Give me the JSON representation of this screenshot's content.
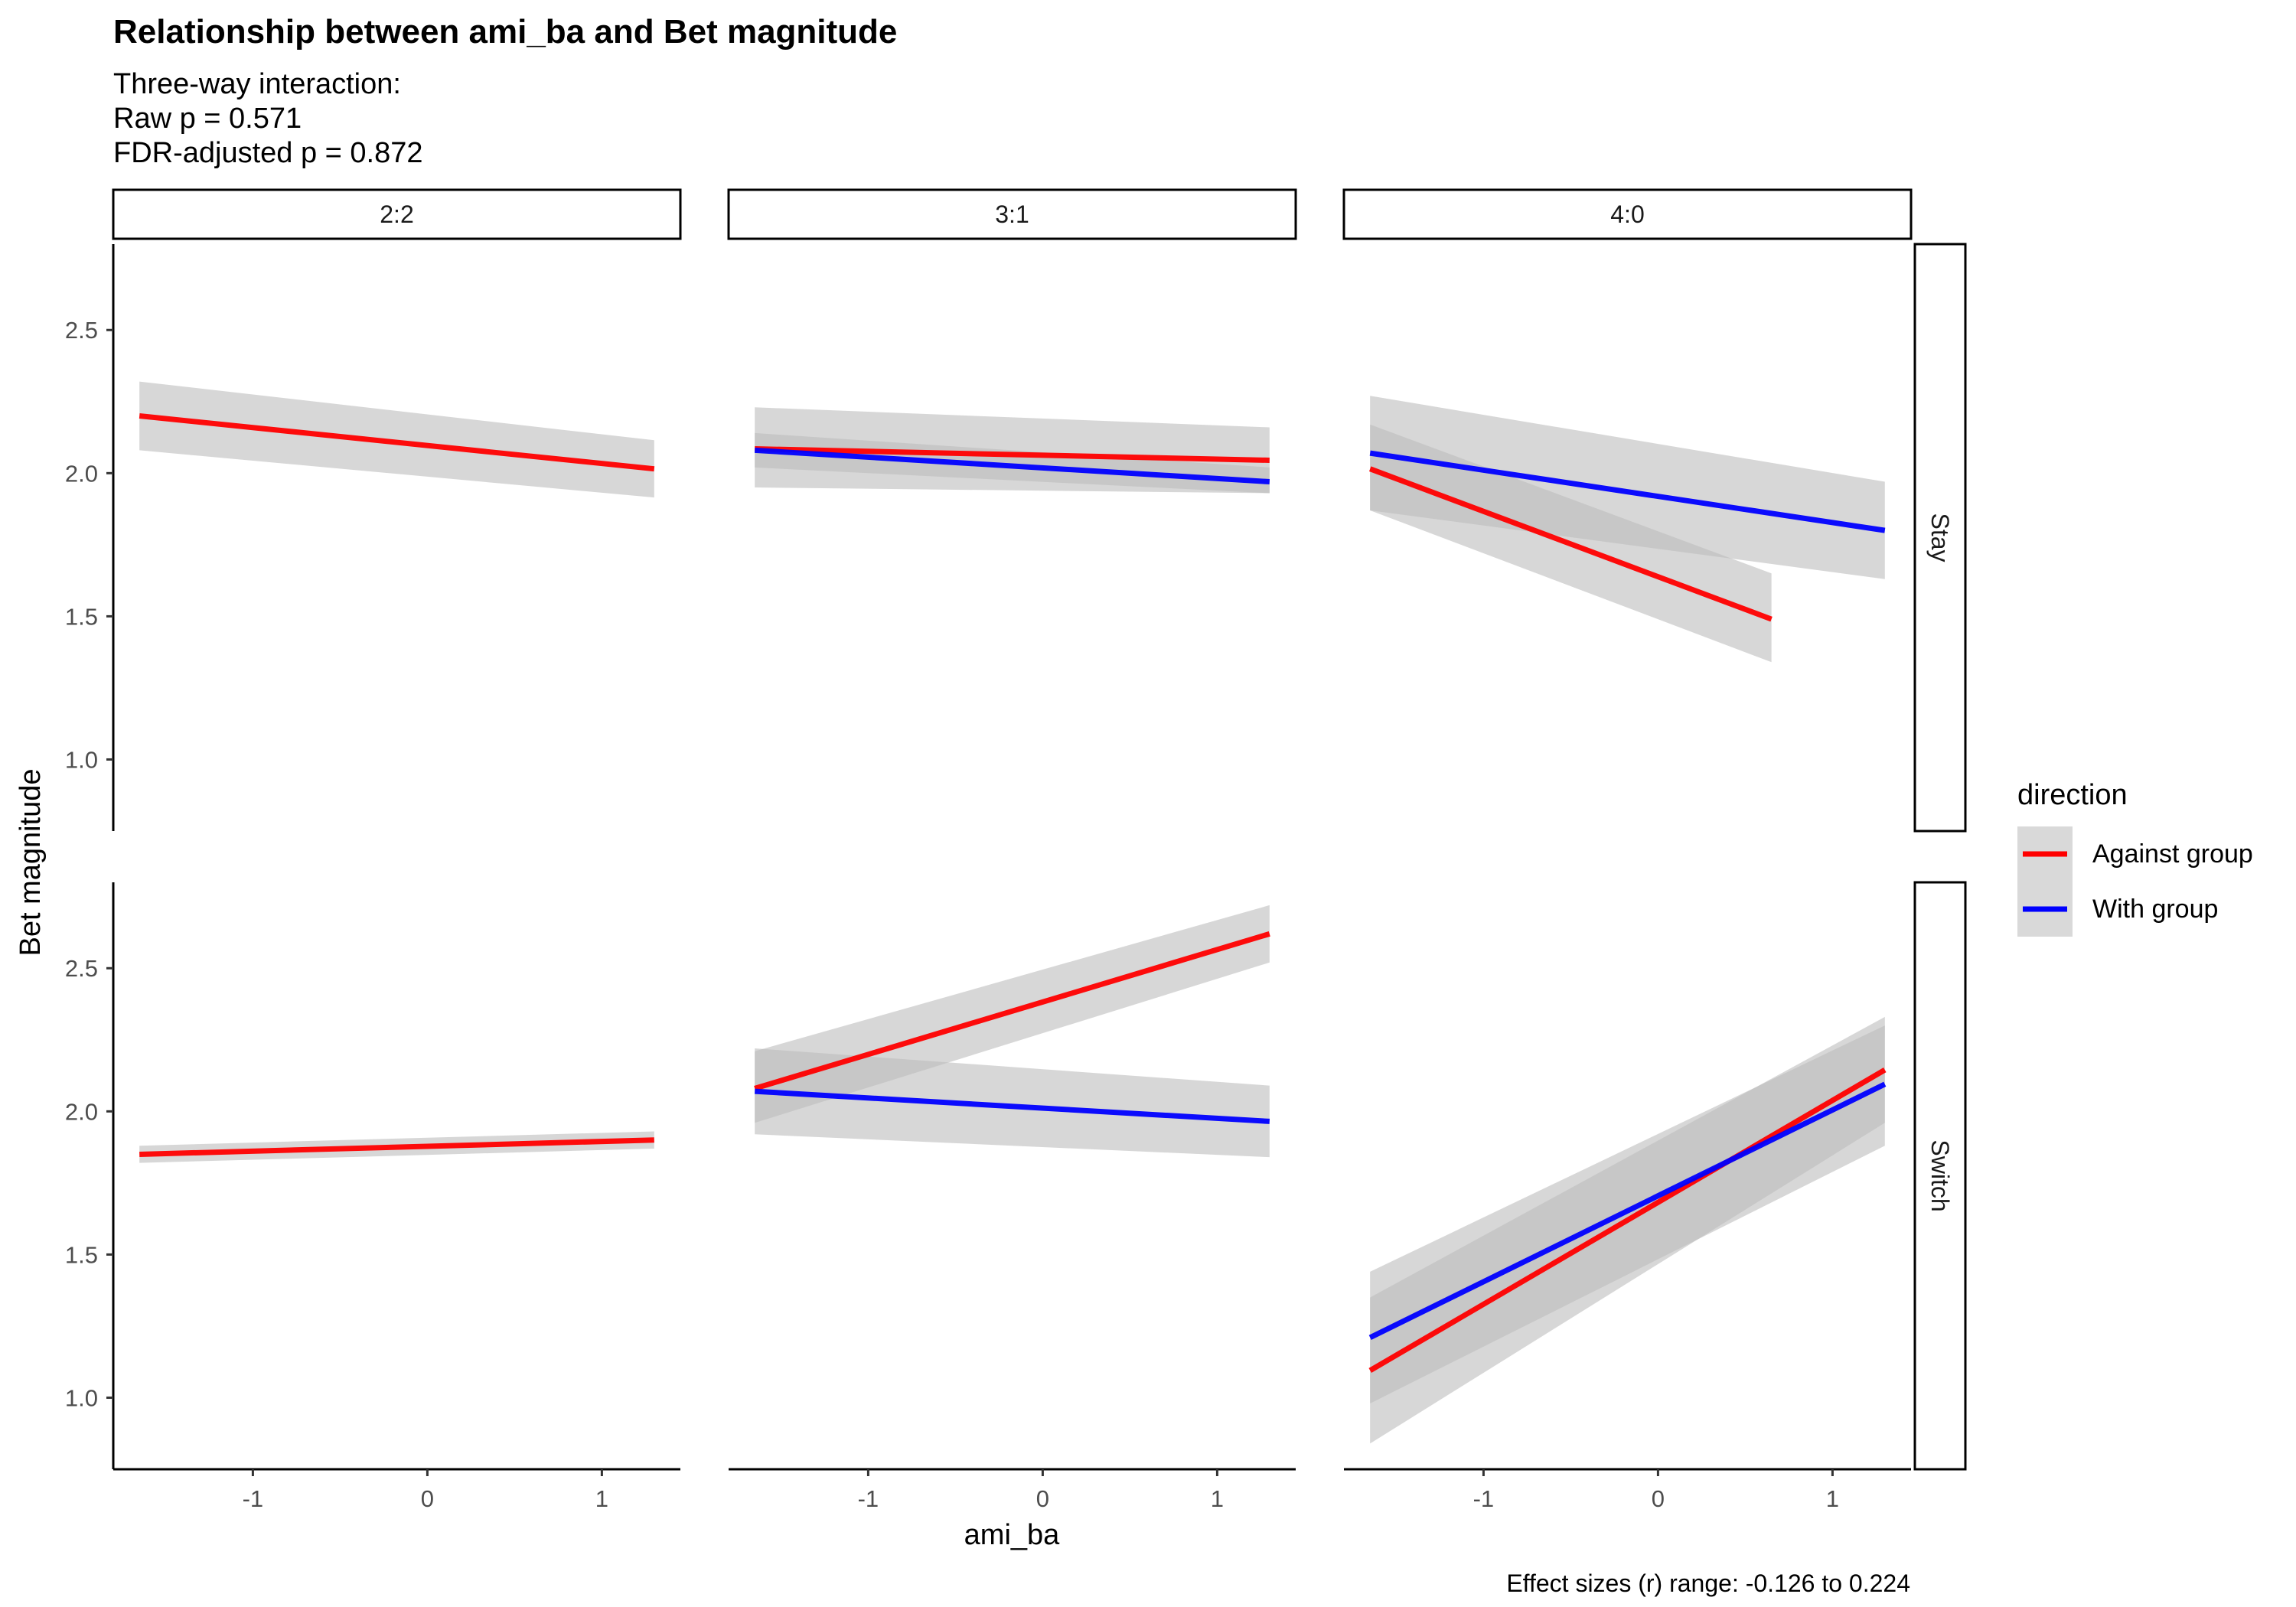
{
  "title": "Relationship between ami_ba and Bet magnitude",
  "subtitle_lines": [
    "Three-way interaction:",
    "Raw p = 0.571",
    "FDR-adjusted p = 0.872"
  ],
  "caption": "Effect sizes (r) range: -0.126 to 0.224",
  "colors": {
    "Against group": "#ff0000",
    "With group": "#0000ff",
    "ribbon": "#bdbdbd"
  },
  "chart_data": {
    "type": "line",
    "title": "Relationship between ami_ba and Bet magnitude",
    "xlabel": "ami_ba",
    "ylabel": "Bet magnitude",
    "xlim": [
      -1.8,
      1.45
    ],
    "ylim": [
      0.75,
      2.8
    ],
    "x_ticks": [
      -1,
      0,
      1
    ],
    "y_ticks": [
      1.0,
      1.5,
      2.0,
      2.5
    ],
    "x_tick_labels": [
      "-1",
      "0",
      "1"
    ],
    "y_tick_labels": [
      "1.0",
      "1.5",
      "2.0",
      "2.5"
    ],
    "grid": false,
    "legend": {
      "title": "direction",
      "position": "right",
      "entries": [
        "Against group",
        "With group"
      ]
    },
    "columns": [
      "2:2",
      "3:1",
      "4:0"
    ],
    "rows": [
      "Stay",
      "Switch"
    ],
    "panels": [
      {
        "row": "Stay",
        "col": "2:2",
        "series": [
          {
            "name": "Against group",
            "x": [
              -1.65,
              1.3
            ],
            "y": [
              2.2,
              2.015
            ],
            "lower": [
              2.08,
              1.915
            ],
            "upper": [
              2.32,
              2.115
            ]
          }
        ]
      },
      {
        "row": "Stay",
        "col": "3:1",
        "series": [
          {
            "name": "Against group",
            "x": [
              -1.65,
              1.3
            ],
            "y": [
              2.085,
              2.045
            ],
            "lower": [
              1.95,
              1.93
            ],
            "upper": [
              2.23,
              2.16
            ]
          },
          {
            "name": "With group",
            "x": [
              -1.65,
              1.3
            ],
            "y": [
              2.08,
              1.97
            ],
            "lower": [
              2.02,
              1.93
            ],
            "upper": [
              2.14,
              2.02
            ]
          }
        ]
      },
      {
        "row": "Stay",
        "col": "4:0",
        "series": [
          {
            "name": "Against group",
            "x": [
              -1.65,
              0.65
            ],
            "y": [
              2.015,
              1.49
            ],
            "lower": [
              1.87,
              1.34
            ],
            "upper": [
              2.17,
              1.65
            ]
          },
          {
            "name": "With group",
            "x": [
              -1.65,
              1.3
            ],
            "y": [
              2.07,
              1.8
            ],
            "lower": [
              1.87,
              1.63
            ],
            "upper": [
              2.27,
              1.97
            ]
          }
        ]
      },
      {
        "row": "Switch",
        "col": "2:2",
        "series": [
          {
            "name": "Against group",
            "x": [
              -1.65,
              1.3
            ],
            "y": [
              1.85,
              1.9
            ],
            "lower": [
              1.82,
              1.87
            ],
            "upper": [
              1.88,
              1.93
            ]
          }
        ]
      },
      {
        "row": "Switch",
        "col": "3:1",
        "series": [
          {
            "name": "Against group",
            "x": [
              -1.65,
              1.3
            ],
            "y": [
              2.08,
              2.62
            ],
            "lower": [
              1.96,
              2.52
            ],
            "upper": [
              2.21,
              2.72
            ]
          },
          {
            "name": "With group",
            "x": [
              -1.65,
              1.3
            ],
            "y": [
              2.07,
              1.965
            ],
            "lower": [
              1.92,
              1.84
            ],
            "upper": [
              2.22,
              2.09
            ]
          }
        ]
      },
      {
        "row": "Switch",
        "col": "4:0",
        "series": [
          {
            "name": "Against group",
            "x": [
              -1.65,
              1.3
            ],
            "y": [
              1.095,
              2.145
            ],
            "lower": [
              0.84,
              1.96
            ],
            "upper": [
              1.35,
              2.33
            ]
          },
          {
            "name": "With group",
            "x": [
              -1.65,
              1.3
            ],
            "y": [
              1.21,
              2.095
            ],
            "lower": [
              0.98,
              1.88
            ],
            "upper": [
              1.44,
              2.3
            ]
          }
        ]
      }
    ]
  }
}
